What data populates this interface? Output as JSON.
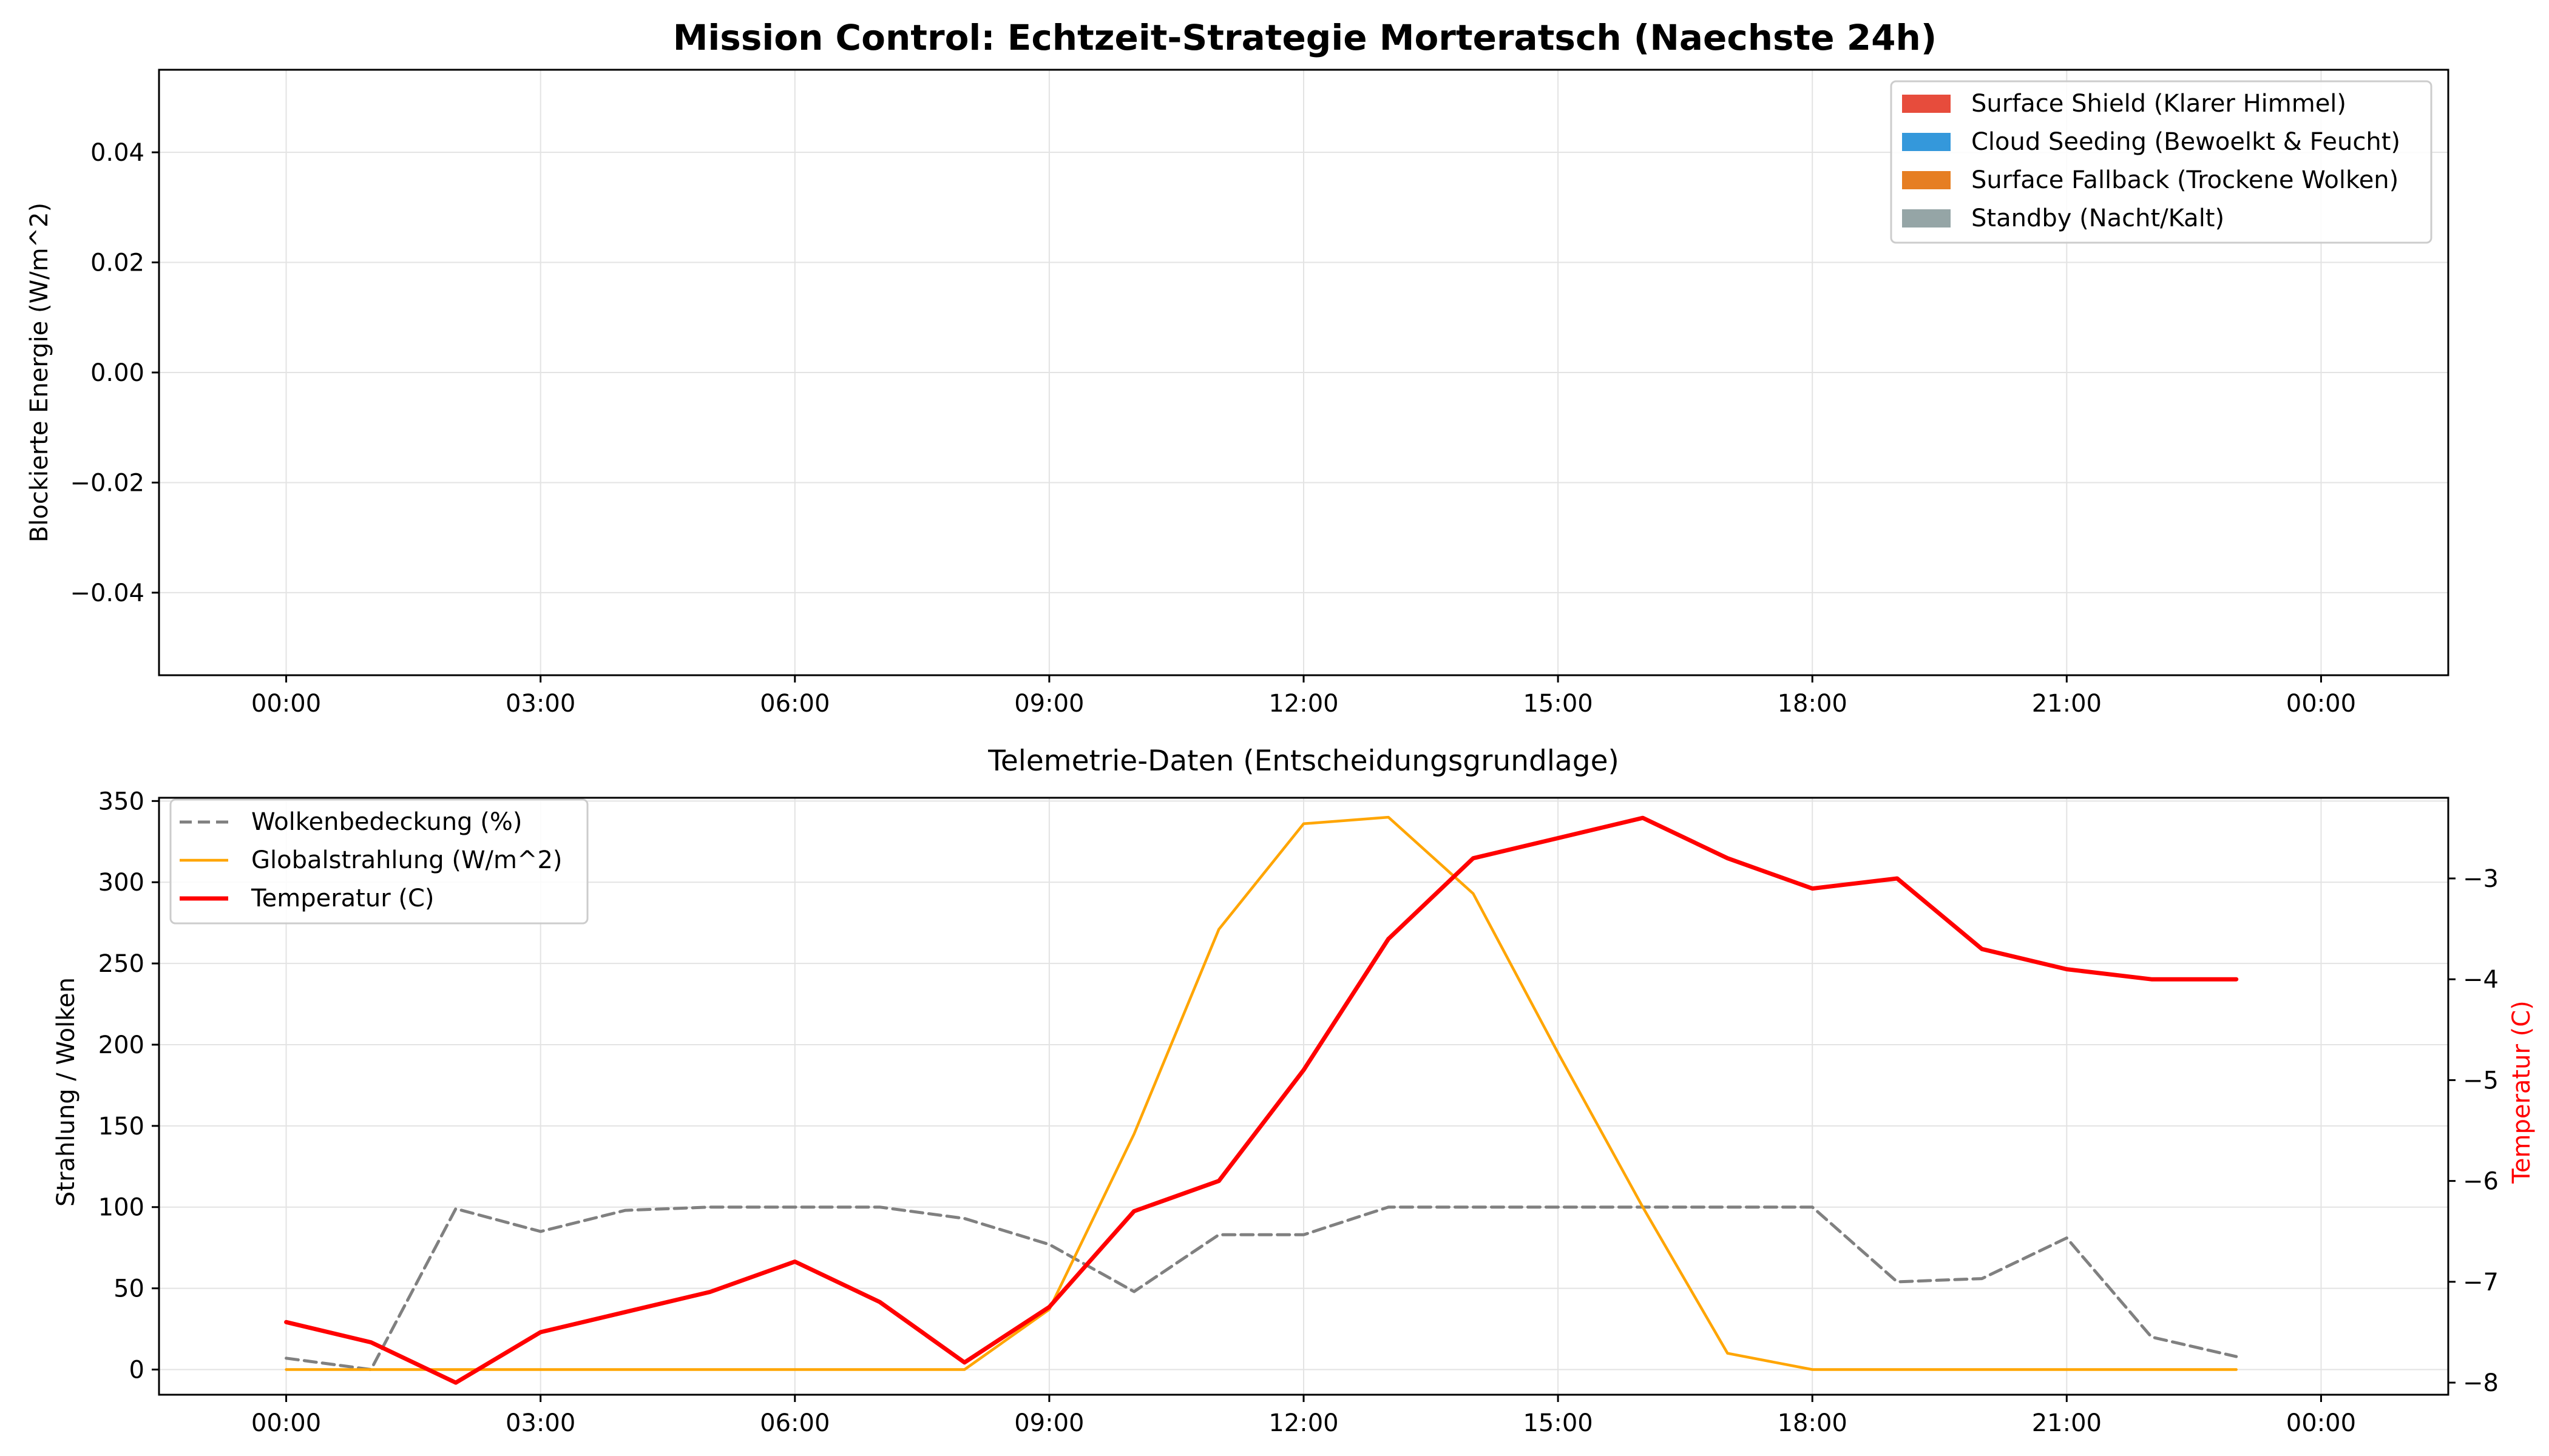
{
  "figure_title": "Mission Control: Echtzeit-Strategie Morteratsch (Naechste 24h)",
  "colors": {
    "surface_shield": "#e74c3c",
    "cloud_seeding": "#3498db",
    "surface_fallback": "#e67e22",
    "standby": "#95a5a6",
    "cloud": "#808080",
    "radiation": "#ffa500",
    "temperature": "#ff0000",
    "grid": "#e3e3e3"
  },
  "chart_data": [
    {
      "type": "area",
      "title": "",
      "ylabel": "Blockierte Energie (W/m^2)",
      "xlabel": "",
      "ylim": [
        -0.055,
        0.055
      ],
      "yticks": [
        -0.04,
        -0.02,
        0.0,
        0.02,
        0.04
      ],
      "ytick_labels": [
        "−0.04",
        "−0.02",
        "0.00",
        "0.02",
        "0.04"
      ],
      "xlim": [
        -1.5,
        25.5
      ],
      "xticks": [
        0,
        3,
        6,
        9,
        12,
        15,
        18,
        21,
        24
      ],
      "xtick_labels": [
        "00:00",
        "03:00",
        "06:00",
        "09:00",
        "12:00",
        "15:00",
        "18:00",
        "21:00",
        "00:00"
      ],
      "grid": true,
      "legend_position": "top-right",
      "legend": [
        {
          "label": "Surface Shield (Klarer Himmel)",
          "color": "#e74c3c"
        },
        {
          "label": "Cloud Seeding (Bewoelkt & Feucht)",
          "color": "#3498db"
        },
        {
          "label": "Surface Fallback (Trockene Wolken)",
          "color": "#e67e22"
        },
        {
          "label": "Standby (Nacht/Kalt)",
          "color": "#95a5a6"
        }
      ],
      "series": []
    },
    {
      "type": "line",
      "title": "Telemetrie-Daten (Entscheidungsgrundlage)",
      "ylabel": "Strahlung / Wolken",
      "ylabel_right": "Temperatur (C)",
      "xlabel": "",
      "xlim": [
        -1.5,
        25.5
      ],
      "ylim": [
        -15.5,
        352
      ],
      "ylim_right": [
        -8.12,
        -2.2
      ],
      "yticks": [
        0,
        50,
        100,
        150,
        200,
        250,
        300,
        350
      ],
      "ytick_labels": [
        "0",
        "50",
        "100",
        "150",
        "200",
        "250",
        "300",
        "350"
      ],
      "yticks_right": [
        -8,
        -7,
        -6,
        -5,
        -4,
        -3
      ],
      "ytick_labels_right": [
        "−8",
        "−7",
        "−6",
        "−5",
        "−4",
        "−3"
      ],
      "xticks": [
        0,
        3,
        6,
        9,
        12,
        15,
        18,
        21,
        24
      ],
      "xtick_labels": [
        "00:00",
        "03:00",
        "06:00",
        "09:00",
        "12:00",
        "15:00",
        "18:00",
        "21:00",
        "00:00"
      ],
      "grid": true,
      "legend_position": "top-left",
      "x": [
        0,
        1,
        2,
        3,
        4,
        5,
        6,
        7,
        8,
        9,
        10,
        11,
        12,
        13,
        14,
        15,
        16,
        17,
        18,
        19,
        20,
        21,
        22,
        23
      ],
      "series": [
        {
          "name": "Wolkenbedeckung (%)",
          "axis": "left",
          "style": "dashed",
          "color": "#808080",
          "values": [
            7,
            0,
            99,
            85,
            98,
            100,
            100,
            100,
            93,
            77,
            48,
            83,
            83,
            100,
            100,
            100,
            100,
            100,
            100,
            54,
            56,
            81,
            20,
            8
          ]
        },
        {
          "name": "Globalstrahlung (W/m^2)",
          "axis": "left",
          "style": "solid",
          "color": "#ffa500",
          "values": [
            0,
            0,
            0,
            0,
            0,
            0,
            0,
            0,
            0,
            37,
            145,
            271,
            336,
            340,
            293,
            195,
            100,
            10,
            0,
            0,
            0,
            0,
            0,
            0
          ]
        },
        {
          "name": "Temperatur (C)",
          "axis": "right",
          "style": "solid-thick",
          "color": "#ff0000",
          "values": [
            -7.4,
            -7.6,
            -8.0,
            -7.5,
            -7.3,
            -7.1,
            -6.8,
            -7.2,
            -7.8,
            -7.25,
            -6.3,
            -6.0,
            -4.9,
            -3.6,
            -2.8,
            -2.6,
            -2.4,
            -2.8,
            -3.1,
            -3.0,
            -3.7,
            -3.9,
            -4.0,
            -4.0
          ]
        }
      ]
    }
  ]
}
